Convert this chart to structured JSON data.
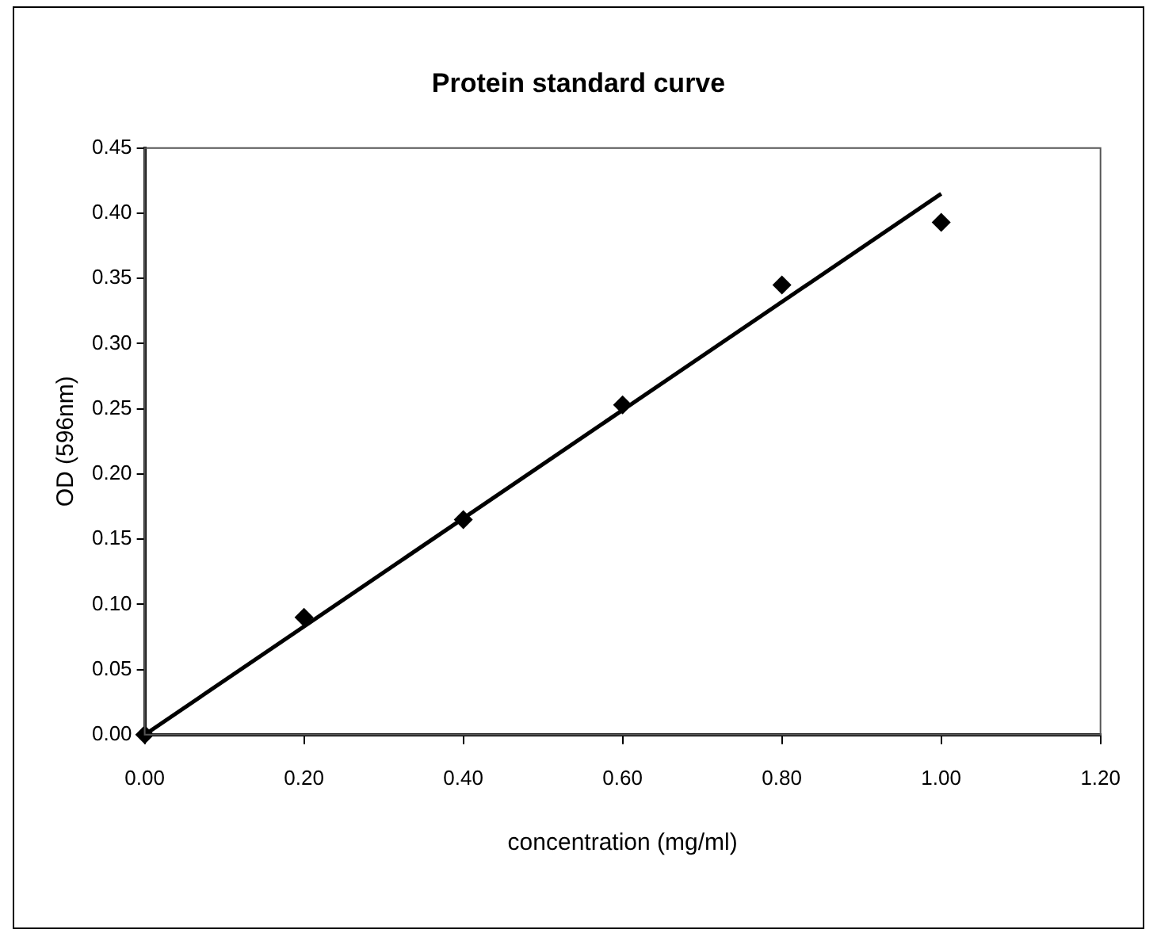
{
  "chart_data": {
    "type": "scatter",
    "title": "Protein standard curve",
    "xlabel": "concentration (mg/ml)",
    "ylabel": "OD (596nm)",
    "xlim": [
      0,
      1.2
    ],
    "xticks": [
      {
        "value": 0,
        "label": "0.00"
      },
      {
        "value": 0.2,
        "label": "0.20"
      },
      {
        "value": 0.4,
        "label": "0.40"
      },
      {
        "value": 0.6,
        "label": "0.60"
      },
      {
        "value": 0.8,
        "label": "0.80"
      },
      {
        "value": 1,
        "label": "1.00"
      },
      {
        "value": 1.2,
        "label": "1.20"
      }
    ],
    "ylim": [
      0,
      0.45
    ],
    "yticks": [
      {
        "value": 0,
        "label": "0.00"
      },
      {
        "value": 0.05,
        "label": "0.05"
      },
      {
        "value": 0.1,
        "label": "0.10"
      },
      {
        "value": 0.15,
        "label": "0.15"
      },
      {
        "value": 0.2,
        "label": "0.20"
      },
      {
        "value": 0.25,
        "label": "0.25"
      },
      {
        "value": 0.3,
        "label": "0.30"
      },
      {
        "value": 0.35,
        "label": "0.35"
      },
      {
        "value": 0.4,
        "label": "0.40"
      },
      {
        "value": 0.45,
        "label": "0.45"
      }
    ],
    "grid": false,
    "legend": false,
    "marker": "diamond",
    "series": [
      {
        "type": "scatter",
        "color": "#000000",
        "x": [
          0,
          0.2,
          0.4,
          0.6,
          0.8,
          1.0
        ],
        "values": [
          0,
          0.09,
          0.165,
          0.253,
          0.345,
          0.393
        ]
      },
      {
        "type": "line",
        "color": "#000000",
        "marker": "none",
        "x": [
          0,
          1.0
        ],
        "values": [
          0,
          0.415
        ]
      }
    ]
  }
}
